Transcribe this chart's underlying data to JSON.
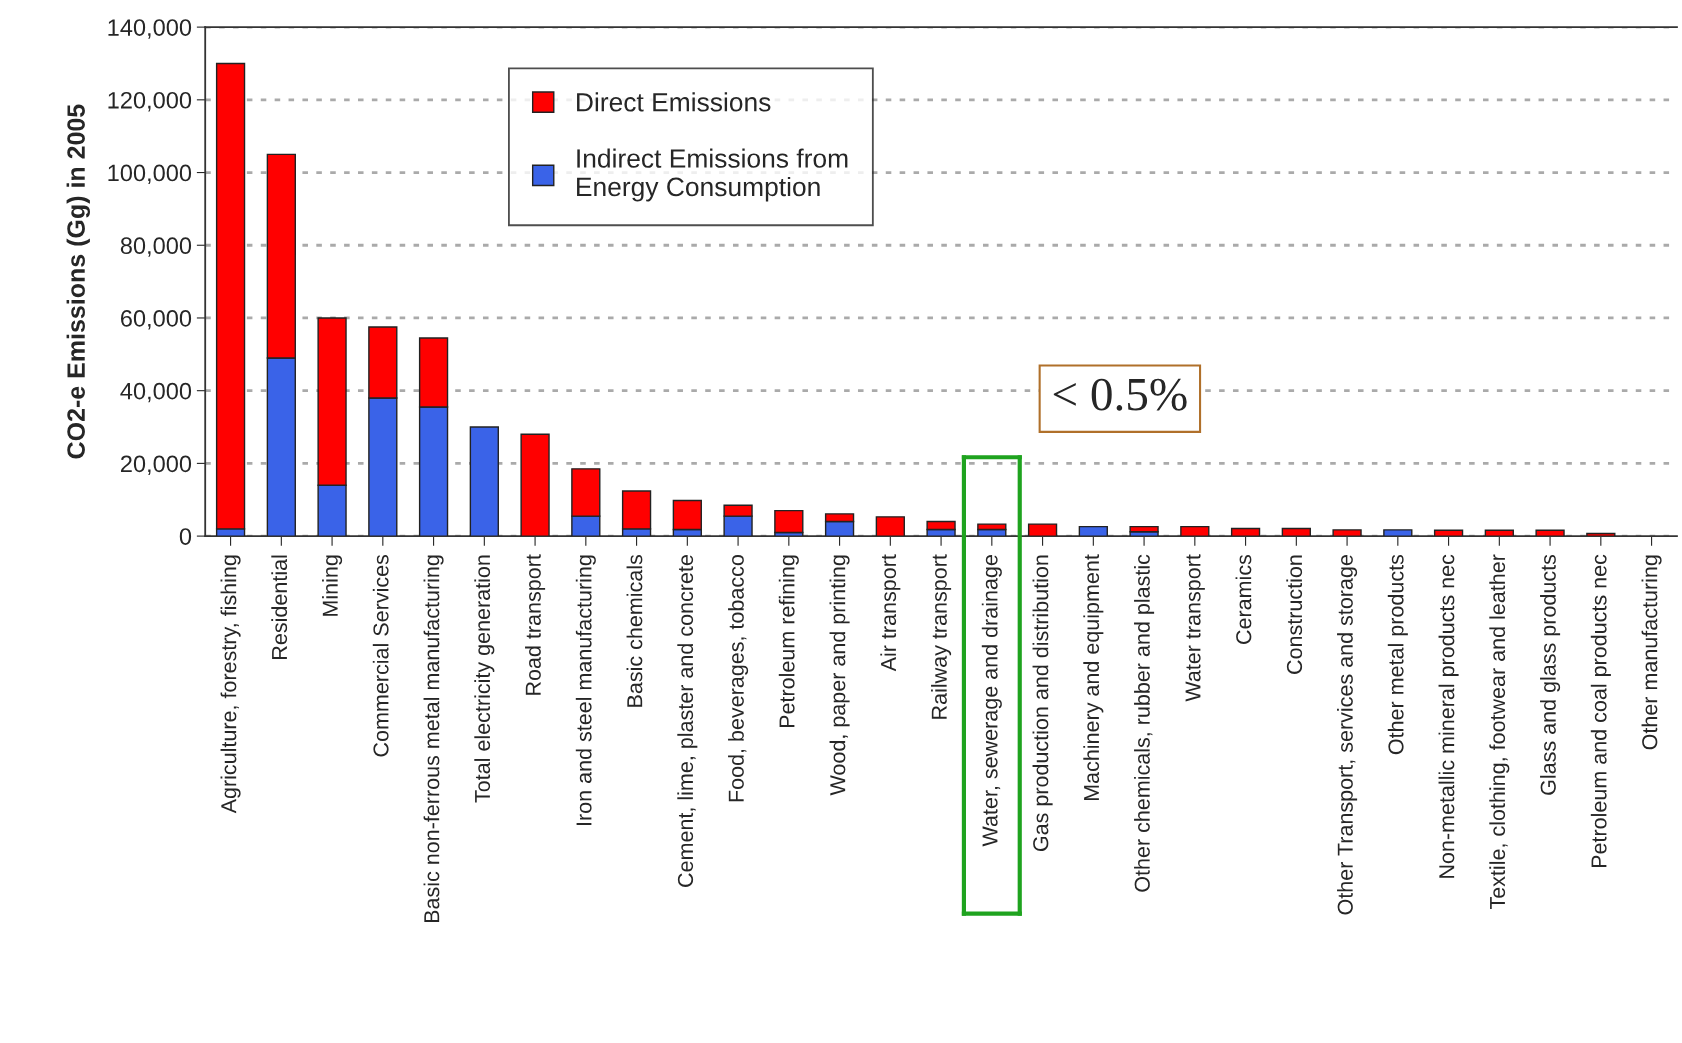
{
  "chart_data": {
    "type": "bar",
    "stacked": true,
    "ylabel": "CO2-e Emissions (Gg) in 2005",
    "categories": [
      "Agriculture, forestry, fishing",
      "Residential",
      "Mining",
      "Commercial Services",
      "Basic non-ferrous metal manufacturing",
      "Total electricity generation",
      "Road transport",
      "Iron and steel manufacturing",
      "Basic chemicals",
      "Cement, lime, plaster and concrete",
      "Food, beverages, tobacco",
      "Petroleum refining",
      "Wood, paper and printing",
      "Air transport",
      "Railway transport",
      "Water, sewerage and drainage",
      "Gas production and distribution",
      "Machinery and equipment",
      "Other chemicals, rubber and plastic",
      "Water transport",
      "Ceramics",
      "Construction",
      "Other Transport, services and storage",
      "Other metal products",
      "Non-metallic mineral products nec",
      "Textile, clothing, footwear and leather",
      "Glass and glass products",
      "Petroleum and coal products nec",
      "Other manufacturing"
    ],
    "series": [
      {
        "name": "Indirect Emissions from Energy Consumption",
        "color": "#3a63e8",
        "values": [
          2000,
          49000,
          14000,
          38000,
          35500,
          30000,
          0,
          5500,
          2000,
          1800,
          5500,
          1000,
          4000,
          0,
          1800,
          1800,
          0,
          2600,
          1200,
          0,
          0,
          0,
          0,
          1700,
          0,
          0,
          0,
          0,
          0
        ]
      },
      {
        "name": "Direct Emissions",
        "color": "#ff0000",
        "values": [
          128000,
          56000,
          46000,
          19500,
          19000,
          0,
          28000,
          13000,
          10400,
          8000,
          3000,
          6000,
          2100,
          5300,
          2200,
          1500,
          3300,
          0,
          1400,
          2600,
          2100,
          2100,
          1700,
          0,
          1600,
          1600,
          1600,
          700,
          null
        ]
      }
    ],
    "ylim": [
      0,
      140000
    ],
    "yticks": [
      {
        "value": 0,
        "label": "0"
      },
      {
        "value": 20000,
        "label": "20,000"
      },
      {
        "value": 40000,
        "label": "40,000"
      },
      {
        "value": 60000,
        "label": "60,000"
      },
      {
        "value": 80000,
        "label": "80,000"
      },
      {
        "value": 100000,
        "label": "100,000"
      },
      {
        "value": 120000,
        "label": "120,000"
      },
      {
        "value": 140000,
        "label": "140,000"
      }
    ],
    "grid": "y",
    "legend": "top",
    "annotations": [
      "< 0.5%"
    ]
  }
}
